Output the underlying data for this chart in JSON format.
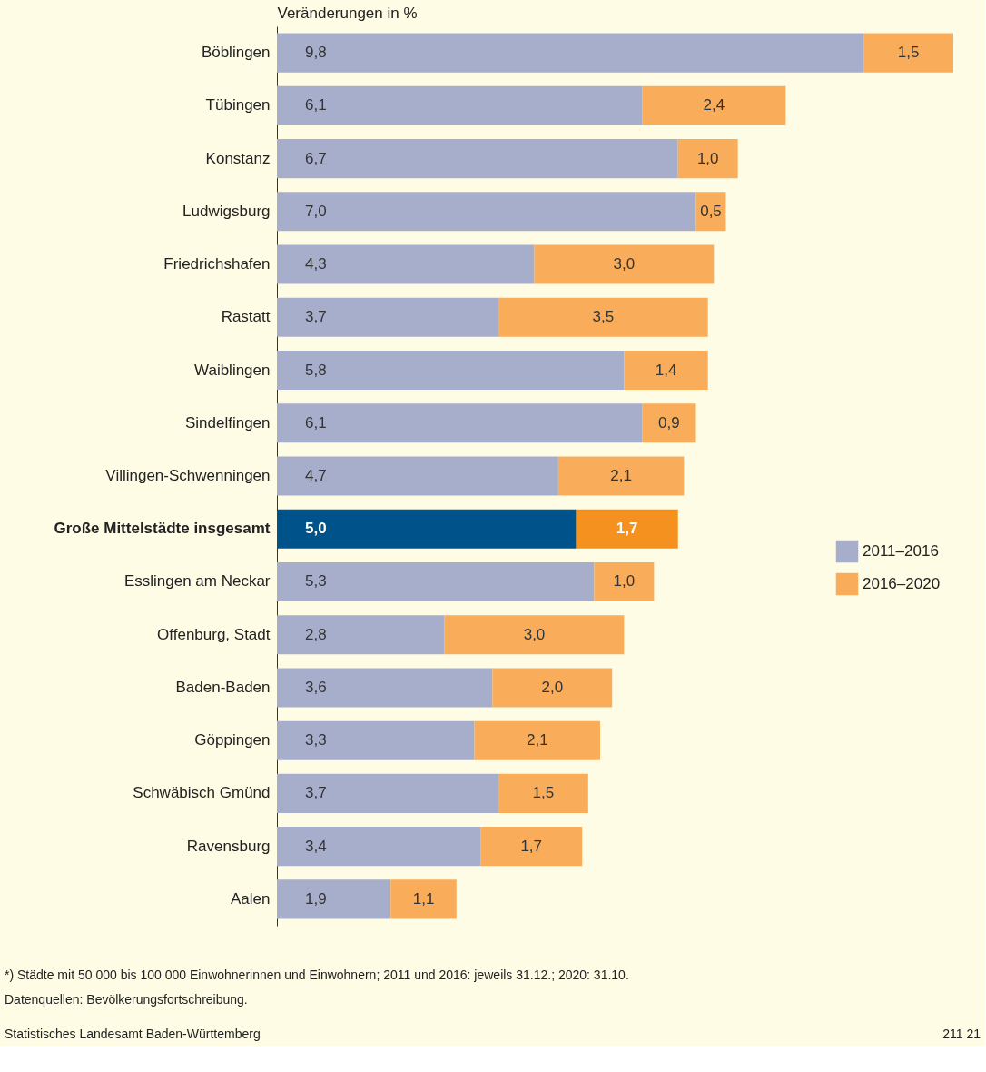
{
  "chart_data": {
    "type": "bar",
    "orientation": "horizontal",
    "stacked": true,
    "legend": "right",
    "grid": false,
    "xlabel": "Veränderungen in %",
    "categories": [
      "Böblingen",
      "Tübingen",
      "Konstanz",
      "Ludwigsburg",
      "Friedrichshafen",
      "Rastatt",
      "Waiblingen",
      "Sindelfingen",
      "Villingen-Schwenningen",
      "Große Mittelstädte insgesamt",
      "Esslingen am Neckar",
      "Offenburg, Stadt",
      "Baden-Baden",
      "Göppingen",
      "Schwäbisch Gmünd",
      "Ravensburg",
      "Aalen"
    ],
    "series": [
      {
        "name": "2011–2016",
        "color": "#a7aecb",
        "colors": [
          "#a7aecb",
          "#a7aecb",
          "#a7aecb",
          "#a7aecb",
          "#a7aecb",
          "#a7aecb",
          "#a7aecb",
          "#a7aecb",
          "#a7aecb",
          "#00528a",
          "#a7aecb",
          "#a7aecb",
          "#a7aecb",
          "#a7aecb",
          "#a7aecb",
          "#a7aecb",
          "#a7aecb"
        ],
        "values": [
          9.8,
          6.1,
          6.7,
          7.0,
          4.3,
          3.7,
          5.8,
          6.1,
          4.7,
          5.0,
          5.3,
          2.8,
          3.6,
          3.3,
          3.7,
          3.4,
          1.9
        ],
        "value_labels": [
          "9,8",
          "6,1",
          "6,7",
          "7,0",
          "4,3",
          "3,7",
          "5,8",
          "6,1",
          "4,7",
          "5,0",
          "5,3",
          "2,8",
          "3,6",
          "3,3",
          "3,7",
          "3,4",
          "1,9"
        ]
      },
      {
        "name": "2016–2020",
        "color": "#f9ad5a",
        "colors": [
          "#f9ad5a",
          "#f9ad5a",
          "#f9ad5a",
          "#f9ad5a",
          "#f9ad5a",
          "#f9ad5a",
          "#f9ad5a",
          "#f9ad5a",
          "#f9ad5a",
          "#f5911e",
          "#f9ad5a",
          "#f9ad5a",
          "#f9ad5a",
          "#f9ad5a",
          "#f9ad5a",
          "#f9ad5a",
          "#f9ad5a"
        ],
        "values": [
          1.5,
          2.4,
          1.0,
          0.5,
          3.0,
          3.5,
          1.4,
          0.9,
          2.1,
          1.7,
          1.0,
          3.0,
          2.0,
          2.1,
          1.5,
          1.7,
          1.1
        ],
        "value_labels": [
          "1,5",
          "2,4",
          "1,0",
          "0,5",
          "3,0",
          "3,5",
          "1,4",
          "0,9",
          "2,1",
          "1,7",
          "1,0",
          "3,0",
          "2,0",
          "2,1",
          "1,5",
          "1,7",
          "1,1"
        ]
      }
    ],
    "annotations": [
      "*) Städte mit 50 000 bis 100 000 Einwohnerinnen und Einwohnern; 2011 und 2016: jeweils 31.12.; 2020: 31.10.",
      "Datenquellen: Bevölkerungsfortschreibung.",
      "Statistisches Landesamt Baden-Württemberg",
      "211 21"
    ]
  }
}
